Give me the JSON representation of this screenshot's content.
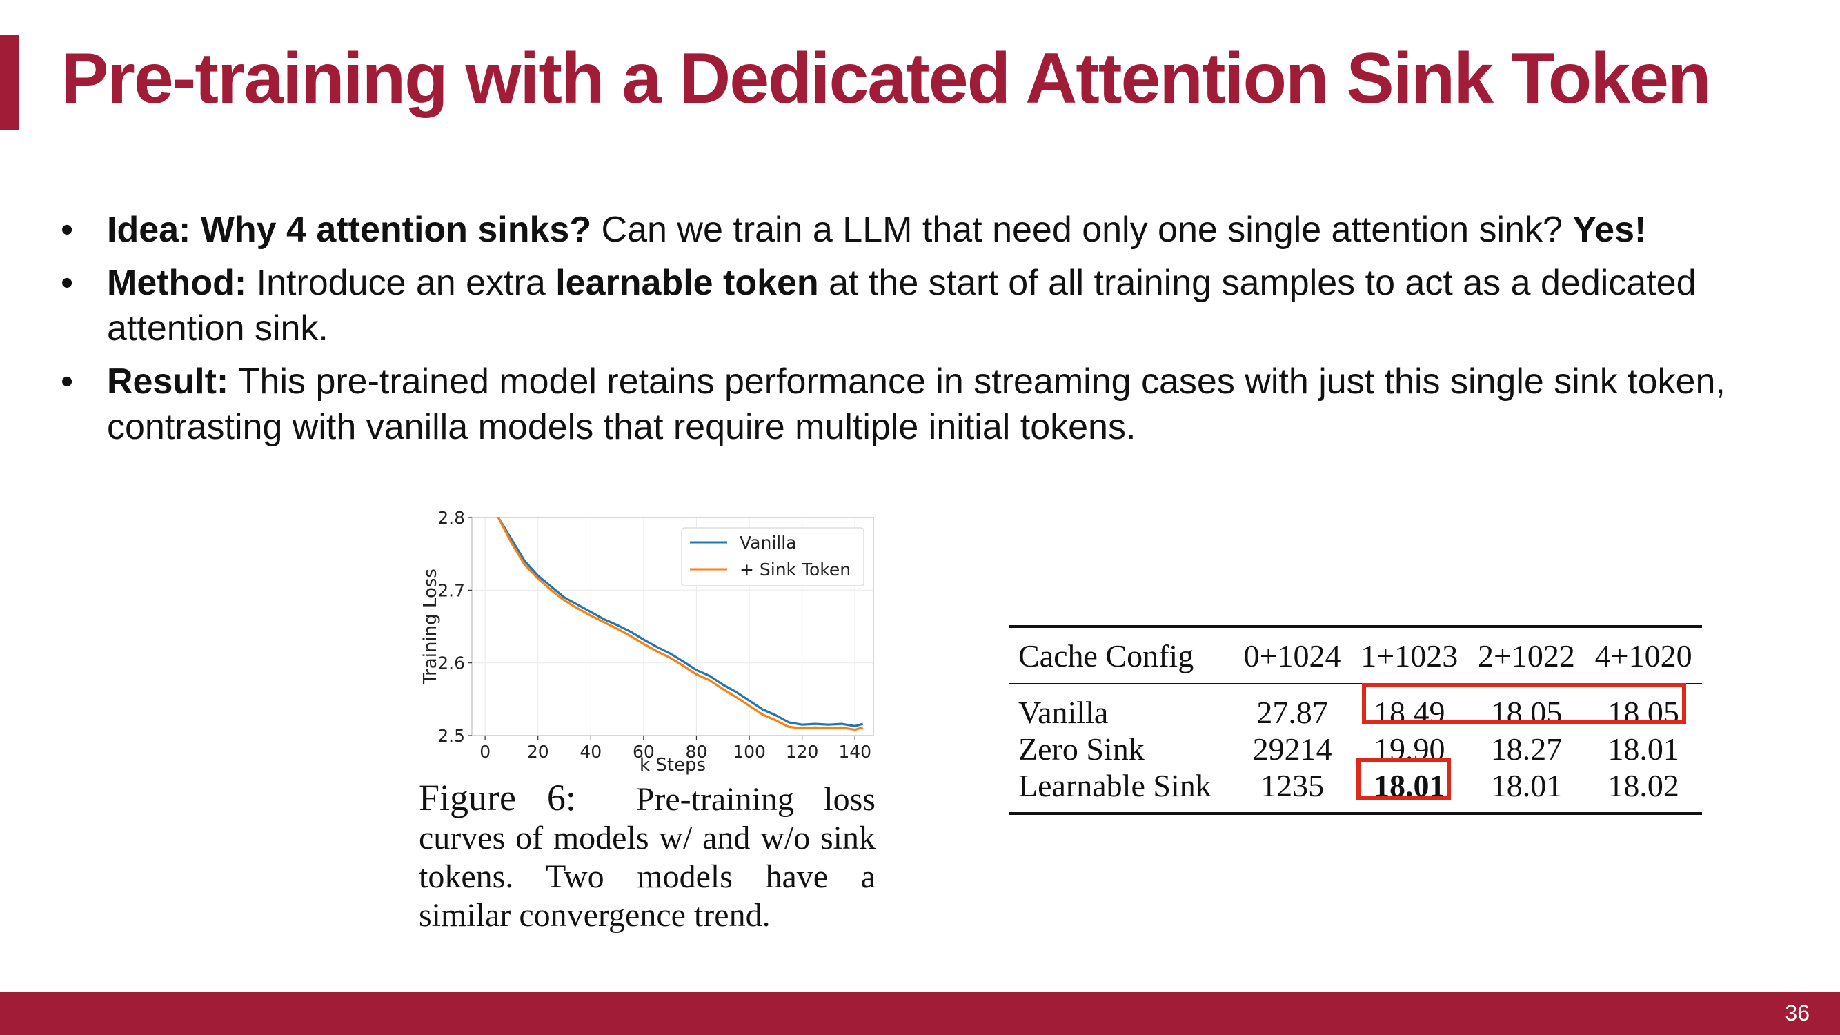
{
  "slide": {
    "title": "Pre-training with a Dedicated Attention Sink Token",
    "page_number": "36",
    "colors": {
      "accent": "#a11c36",
      "highlight": "#e0281a",
      "vanilla_series": "#1f77b4",
      "sink_series": "#ff7f0e"
    }
  },
  "bullets": [
    {
      "symbol": "•",
      "b1": "Idea: Why 4 attention sinks?",
      "t1": " Can we train a LLM that need only one single attention sink? ",
      "b2": "Yes!"
    },
    {
      "symbol": "•",
      "b1": "Method:",
      "t1": " Introduce an extra ",
      "b2": "learnable token",
      "t2": " at the start of all training samples to act as a dedicated attention sink."
    },
    {
      "symbol": "•",
      "b1": "Result:",
      "t1": " This pre-trained model retains performance in streaming cases with just this single sink token, contrasting with vanilla models that require multiple initial tokens."
    }
  ],
  "chart_data": {
    "type": "line",
    "xlabel": "k Steps",
    "ylabel": "Training Loss",
    "xlim": [
      -5,
      147
    ],
    "ylim": [
      2.5,
      2.8
    ],
    "x_ticks": [
      0,
      20,
      40,
      60,
      80,
      100,
      120,
      140
    ],
    "y_ticks": [
      2.5,
      2.6,
      2.7,
      2.8
    ],
    "grid": true,
    "legend_position": "top-right",
    "series": [
      {
        "name": "Vanilla",
        "color": "#1f77b4",
        "x": [
          5,
          10,
          15,
          20,
          25,
          30,
          35,
          40,
          45,
          50,
          55,
          60,
          65,
          70,
          75,
          80,
          85,
          90,
          95,
          100,
          105,
          110,
          115,
          120,
          125,
          130,
          135,
          140,
          143
        ],
        "y": [
          2.8,
          2.77,
          2.74,
          2.72,
          2.705,
          2.69,
          2.68,
          2.67,
          2.66,
          2.652,
          2.643,
          2.632,
          2.622,
          2.613,
          2.602,
          2.59,
          2.582,
          2.57,
          2.56,
          2.548,
          2.536,
          2.528,
          2.518,
          2.515,
          2.516,
          2.515,
          2.516,
          2.513,
          2.516
        ]
      },
      {
        "name": "+ Sink Token",
        "color": "#ff7f0e",
        "x": [
          5,
          10,
          15,
          20,
          25,
          30,
          35,
          40,
          45,
          50,
          55,
          60,
          65,
          70,
          75,
          80,
          85,
          90,
          95,
          100,
          105,
          110,
          115,
          120,
          125,
          130,
          135,
          140,
          143
        ],
        "y": [
          2.8,
          2.765,
          2.735,
          2.716,
          2.7,
          2.686,
          2.675,
          2.665,
          2.656,
          2.647,
          2.637,
          2.626,
          2.616,
          2.607,
          2.596,
          2.584,
          2.576,
          2.564,
          2.553,
          2.541,
          2.529,
          2.521,
          2.512,
          2.51,
          2.511,
          2.51,
          2.511,
          2.508,
          2.511
        ]
      }
    ]
  },
  "figure": {
    "label": "Figure 6:",
    "caption": "Pre-training loss curves of models w/ and w/o sink tokens. Two models have a similar convergence trend."
  },
  "table": {
    "headers": [
      "Cache Config",
      "0+1024",
      "1+1023",
      "2+1022",
      "4+1020"
    ],
    "rows": [
      {
        "label": "Vanilla",
        "values": [
          "27.87",
          "18.49",
          "18.05",
          "18.05"
        ]
      },
      {
        "label": "Zero Sink",
        "values": [
          "29214",
          "19.90",
          "18.27",
          "18.01"
        ]
      },
      {
        "label": "Learnable Sink",
        "values": [
          "1235",
          "18.01",
          "18.01",
          "18.02"
        ]
      }
    ]
  }
}
